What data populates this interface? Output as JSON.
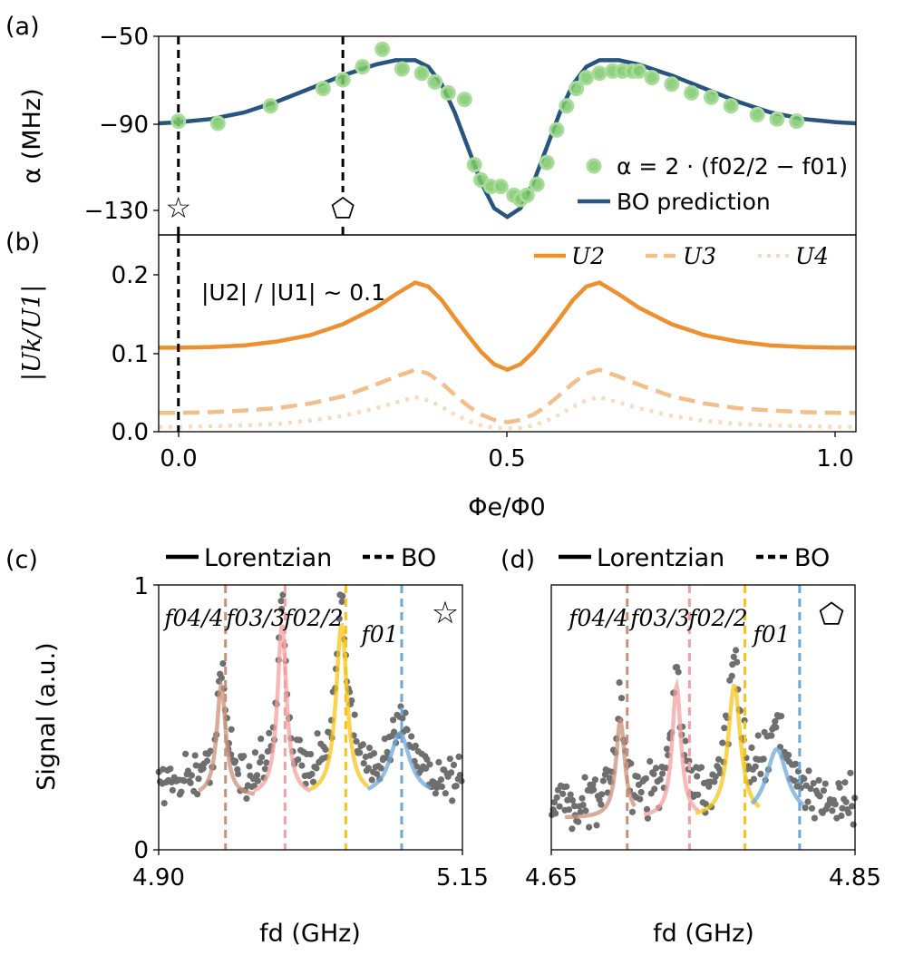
{
  "figure": {
    "panel_labels": [
      "(a)",
      "(b)",
      "(c)",
      "(d)"
    ],
    "shared_xlabel": "Φe/Φ0",
    "colors": {
      "bo_line": "#27557f",
      "green_dots": "#7dc96b",
      "u2": "#ef8f2e",
      "u3": "#f4be8a",
      "u4": "#f8dcc0",
      "gray_dots": "#6f6f6f",
      "f04": "#c89078",
      "f03": "#f4a0a0",
      "f02": "#f5c518",
      "f01": "#6fa8d8"
    }
  },
  "chart_data": [
    {
      "panel": "(a)",
      "type": "line",
      "xlabel": "Φe/Φ0",
      "ylabel": "α (MHz)",
      "xlim": [
        -0.03,
        1.03
      ],
      "ylim": [
        -137,
        -50
      ],
      "yticks": [
        -50,
        -90,
        -130
      ],
      "ytick_labels": [
        "−50",
        "−90",
        "−130"
      ],
      "legend": [
        "α = 2 · (f02/2 − f01)",
        "BO prediction"
      ],
      "markers": [
        {
          "x": 0.0,
          "symbol": "☆"
        },
        {
          "x": 0.25,
          "symbol": "⬠"
        }
      ],
      "vlines": [
        0.0,
        0.25
      ],
      "series": [
        {
          "name": "BO prediction",
          "kind": "line",
          "x": [
            -0.03,
            0.0,
            0.05,
            0.1,
            0.15,
            0.2,
            0.25,
            0.3,
            0.33,
            0.36,
            0.38,
            0.4,
            0.42,
            0.44,
            0.46,
            0.48,
            0.5,
            0.52,
            0.54,
            0.56,
            0.58,
            0.6,
            0.62,
            0.64,
            0.67,
            0.7,
            0.75,
            0.8,
            0.85,
            0.9,
            0.95,
            1.0,
            1.03
          ],
          "y": [
            -90,
            -89.5,
            -88,
            -85,
            -80,
            -74,
            -68,
            -63,
            -61,
            -61,
            -64,
            -72,
            -85,
            -101,
            -117,
            -129,
            -133,
            -129,
            -117,
            -101,
            -85,
            -72,
            -64,
            -61,
            -61,
            -63,
            -68,
            -74,
            -80,
            -85,
            -88,
            -89.5,
            -90
          ]
        },
        {
          "name": "α = 2 · (f02/2 − f01)",
          "kind": "scatter",
          "x": [
            0.0,
            0.06,
            0.14,
            0.22,
            0.25,
            0.28,
            0.31,
            0.34,
            0.37,
            0.39,
            0.41,
            0.435,
            0.45,
            0.46,
            0.475,
            0.49,
            0.51,
            0.52,
            0.53,
            0.545,
            0.56,
            0.575,
            0.59,
            0.605,
            0.62,
            0.64,
            0.66,
            0.675,
            0.69,
            0.7,
            0.72,
            0.75,
            0.78,
            0.81,
            0.84,
            0.88,
            0.91,
            0.94
          ],
          "y": [
            -89,
            -90,
            -82,
            -74,
            -70,
            -64,
            -56,
            -65,
            -67,
            -71,
            -76,
            -79,
            -109,
            -116,
            -119,
            -119,
            -123,
            -125,
            -123,
            -118,
            -108,
            -93,
            -82,
            -74,
            -69,
            -67,
            -66,
            -66,
            -66,
            -66,
            -69,
            -72,
            -76,
            -78,
            -82,
            -86,
            -88,
            -89
          ]
        }
      ]
    },
    {
      "panel": "(b)",
      "type": "line",
      "xlabel": "Φe/Φ0",
      "ylabel": "|Uk/U1|",
      "xlim": [
        -0.03,
        1.03
      ],
      "ylim": [
        0.0,
        0.25
      ],
      "yticks": [
        0.0,
        0.1,
        0.2
      ],
      "ytick_labels": [
        "0.0",
        "0.1",
        "0.2"
      ],
      "xticks": [
        0.0,
        0.5,
        1.0
      ],
      "xtick_labels": [
        "0.0",
        "0.5",
        "1.0"
      ],
      "annotation": "|U2| / |U1| ∼ 0.1",
      "legend": [
        "U2",
        "U3",
        "U4"
      ],
      "vlines": [
        0.0
      ],
      "series": [
        {
          "name": "U2",
          "x": [
            -0.03,
            0.0,
            0.05,
            0.1,
            0.15,
            0.2,
            0.25,
            0.3,
            0.33,
            0.36,
            0.38,
            0.4,
            0.42,
            0.44,
            0.46,
            0.48,
            0.5,
            0.52,
            0.54,
            0.56,
            0.58,
            0.6,
            0.62,
            0.64,
            0.67,
            0.7,
            0.75,
            0.8,
            0.85,
            0.9,
            0.95,
            1.0,
            1.03
          ],
          "y": [
            0.107,
            0.107,
            0.108,
            0.11,
            0.115,
            0.123,
            0.137,
            0.158,
            0.175,
            0.19,
            0.185,
            0.168,
            0.145,
            0.123,
            0.102,
            0.086,
            0.079,
            0.086,
            0.102,
            0.123,
            0.145,
            0.168,
            0.185,
            0.19,
            0.175,
            0.158,
            0.137,
            0.123,
            0.115,
            0.11,
            0.108,
            0.107,
            0.107
          ]
        },
        {
          "name": "U3",
          "x": [
            -0.03,
            0.0,
            0.05,
            0.1,
            0.15,
            0.2,
            0.25,
            0.3,
            0.33,
            0.36,
            0.38,
            0.4,
            0.42,
            0.44,
            0.46,
            0.48,
            0.5,
            0.52,
            0.54,
            0.56,
            0.58,
            0.6,
            0.62,
            0.64,
            0.67,
            0.7,
            0.75,
            0.8,
            0.85,
            0.9,
            0.95,
            1.0,
            1.03
          ],
          "y": [
            0.024,
            0.024,
            0.025,
            0.027,
            0.03,
            0.036,
            0.045,
            0.06,
            0.07,
            0.079,
            0.074,
            0.062,
            0.047,
            0.033,
            0.022,
            0.015,
            0.012,
            0.015,
            0.022,
            0.033,
            0.047,
            0.062,
            0.074,
            0.079,
            0.07,
            0.06,
            0.045,
            0.036,
            0.03,
            0.027,
            0.025,
            0.024,
            0.024
          ]
        },
        {
          "name": "U4",
          "x": [
            -0.03,
            0.0,
            0.05,
            0.1,
            0.15,
            0.2,
            0.25,
            0.3,
            0.33,
            0.36,
            0.38,
            0.4,
            0.42,
            0.44,
            0.46,
            0.48,
            0.5,
            0.52,
            0.54,
            0.56,
            0.58,
            0.6,
            0.62,
            0.64,
            0.67,
            0.7,
            0.75,
            0.8,
            0.85,
            0.9,
            0.95,
            1.0,
            1.03
          ],
          "y": [
            0.006,
            0.006,
            0.007,
            0.008,
            0.01,
            0.014,
            0.02,
            0.03,
            0.037,
            0.044,
            0.04,
            0.032,
            0.022,
            0.014,
            0.008,
            0.005,
            0.004,
            0.005,
            0.008,
            0.014,
            0.022,
            0.032,
            0.04,
            0.044,
            0.037,
            0.03,
            0.02,
            0.014,
            0.01,
            0.008,
            0.007,
            0.006,
            0.006
          ]
        }
      ]
    },
    {
      "panel": "(c)",
      "type": "scatter",
      "xlabel": "fd (GHz)",
      "ylabel": "Signal (a.u.)",
      "xlim": [
        4.9,
        5.15
      ],
      "ylim": [
        0,
        1
      ],
      "xtick_labels": [
        "4.90",
        "5.15"
      ],
      "ytick_labels": [
        "0",
        "1"
      ],
      "legend": [
        "Lorentzian",
        "BO"
      ],
      "marker": "☆",
      "peak_labels": [
        "f04/4",
        "f03/3",
        "f02/2",
        "f01"
      ],
      "baseline": 0.26,
      "noise": 0.055,
      "peaks": [
        {
          "name": "f04/4",
          "center": 4.9515,
          "gamma": 0.0045,
          "amp": 0.42,
          "fit_from": 4.933,
          "fit_to": 4.979,
          "bo_line": 4.955
        },
        {
          "name": "f03/3",
          "center": 5.0015,
          "gamma": 0.0045,
          "amp": 0.65,
          "fit_from": 4.978,
          "fit_to": 5.025,
          "bo_line": 5.004
        },
        {
          "name": "f02/2",
          "center": 5.0505,
          "gamma": 0.0055,
          "amp": 0.65,
          "fit_from": 5.025,
          "fit_to": 5.072,
          "bo_line": 5.054
        },
        {
          "name": "f01",
          "center": 5.0985,
          "gamma": 0.01,
          "amp": 0.24,
          "fit_from": 5.072,
          "fit_to": 5.124,
          "bo_line": 5.1
        }
      ]
    },
    {
      "panel": "(d)",
      "type": "scatter",
      "xlabel": "fd (GHz)",
      "ylabel": "Signal (a.u.)",
      "xlim": [
        4.65,
        4.85
      ],
      "ylim": [
        0,
        1
      ],
      "xtick_labels": [
        "4.65",
        "4.85"
      ],
      "ytick_labels": [
        "0",
        "1"
      ],
      "legend": [
        "Lorentzian",
        "BO"
      ],
      "marker": "⬠",
      "peak_labels": [
        "f04/4",
        "f03/3",
        "f02/2",
        "f01"
      ],
      "baseline": 0.18,
      "noise": 0.055,
      "peaks": [
        {
          "name": "f04/4",
          "center": 4.6955,
          "gamma": 0.0035,
          "amp": 0.37,
          "fit_from": 4.659,
          "fit_to": 4.705,
          "bo_line": 4.7
        },
        {
          "name": "f03/3",
          "center": 4.7325,
          "gamma": 0.0035,
          "amp": 0.5,
          "fit_from": 4.711,
          "fit_to": 4.747,
          "bo_line": 4.741
        },
        {
          "name": "f02/2",
          "center": 4.7705,
          "gamma": 0.005,
          "amp": 0.5,
          "fit_from": 4.745,
          "fit_to": 4.787,
          "bo_line": 4.7775
        },
        {
          "name": "f01",
          "center": 4.7985,
          "gamma": 0.0085,
          "amp": 0.26,
          "fit_from": 4.782,
          "fit_to": 4.816,
          "bo_line": 4.8135
        }
      ]
    }
  ]
}
